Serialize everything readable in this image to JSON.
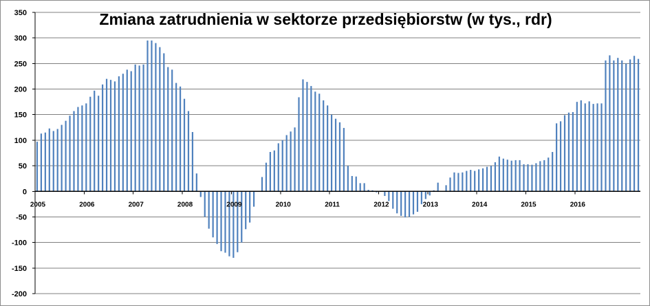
{
  "chart_data": {
    "type": "bar",
    "title": "Zmiana zatrudnienia w sektorze przedsiębiorstw (w tys., rdr)",
    "xlabel": "",
    "ylabel": "",
    "ylim": [
      -200,
      350
    ],
    "yticks": [
      350,
      300,
      250,
      200,
      150,
      100,
      50,
      0,
      -50,
      -100,
      -150,
      -200
    ],
    "grid": true,
    "legend": "none",
    "bar_color": "#4f81bd",
    "grid_color": "#7f7f7f",
    "start": "2005-01",
    "year_labels": [
      "2005",
      "2006",
      "2007",
      "2008",
      "2009",
      "2010",
      "2011",
      "2012",
      "2013",
      "2014",
      "2015",
      "2016"
    ],
    "values": [
      97,
      113,
      115,
      123,
      118,
      122,
      130,
      138,
      148,
      157,
      165,
      168,
      172,
      185,
      197,
      187,
      209,
      220,
      218,
      215,
      225,
      230,
      238,
      235,
      248,
      246,
      248,
      295,
      295,
      290,
      282,
      270,
      243,
      238,
      212,
      205,
      181,
      157,
      116,
      35,
      -11,
      -50,
      -73,
      -90,
      -103,
      -117,
      -120,
      -127,
      -130,
      -119,
      -100,
      -74,
      -61,
      -30,
      0,
      28,
      56,
      77,
      80,
      94,
      100,
      110,
      117,
      125,
      184,
      219,
      214,
      206,
      195,
      191,
      178,
      168,
      150,
      142,
      135,
      124,
      50,
      30,
      29,
      16,
      16,
      3,
      2,
      -2,
      1,
      -9,
      -19,
      -34,
      -43,
      -48,
      -51,
      -50,
      -45,
      -40,
      -25,
      -15,
      -8,
      2,
      17,
      1,
      12,
      27,
      37,
      36,
      37,
      40,
      42,
      40,
      43,
      45,
      48,
      50,
      57,
      68,
      64,
      62,
      60,
      61,
      61,
      53,
      53,
      52,
      55,
      59,
      61,
      66,
      77,
      133,
      137,
      149,
      154,
      155,
      175,
      178,
      172,
      176,
      171,
      172,
      172,
      256,
      266,
      256,
      261,
      256,
      250,
      258,
      265,
      259
    ]
  }
}
